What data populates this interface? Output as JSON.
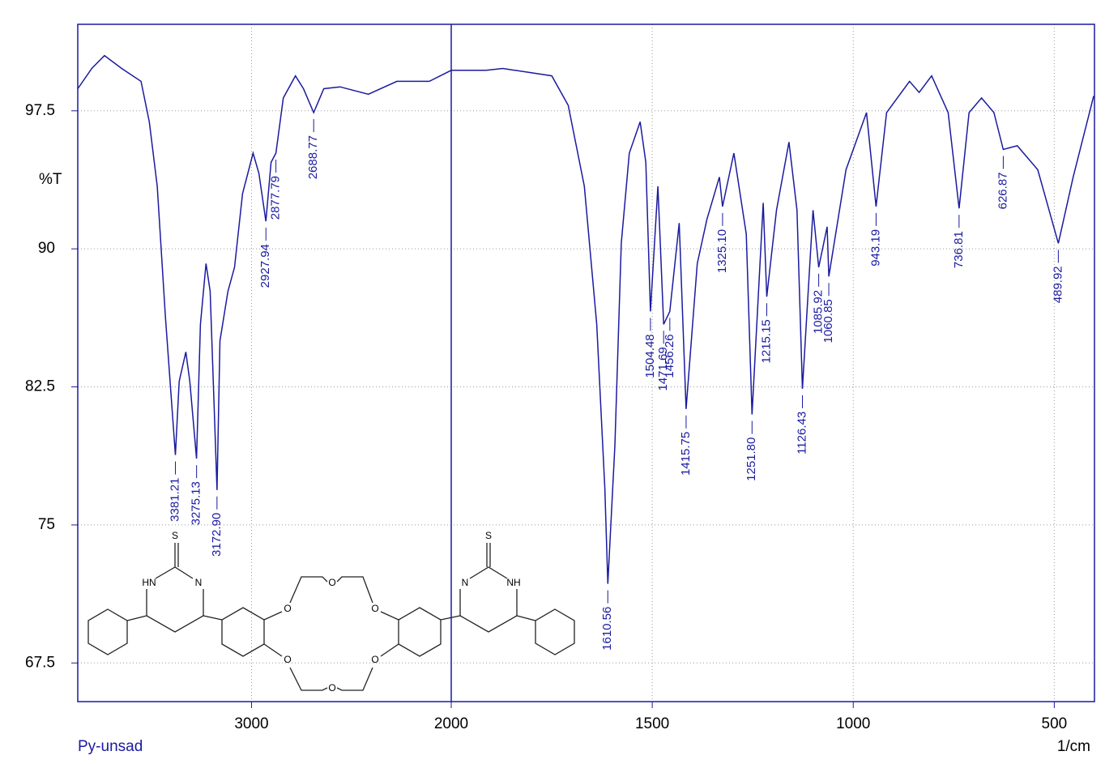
{
  "chart_data": {
    "type": "line",
    "title": "Py-unsad",
    "y_label": "%T",
    "x_label": "1/cm",
    "color": "#1a1aa0",
    "xlim": [
      3870,
      400
    ],
    "x_break": 2000,
    "ylim": [
      65.4,
      102.2
    ],
    "xticks": [
      3000,
      2000,
      1500,
      1000,
      500
    ],
    "yticks": [
      67.5,
      75,
      82.5,
      90,
      97.5
    ],
    "grid": true,
    "x": [
      3870,
      3800,
      3736,
      3650,
      3553,
      3512,
      3472,
      3431,
      3381.21,
      3362,
      3329,
      3309,
      3275.13,
      3256,
      3228,
      3207,
      3172.9,
      3158,
      3118,
      3085,
      3045,
      2992,
      2963,
      2927.94,
      2902,
      2877.79,
      2841,
      2780,
      2740,
      2688.77,
      2638,
      2557,
      2415,
      2272,
      2110,
      2000,
      1913,
      1872,
      1750,
      1709,
      1669,
      1638,
      1618,
      1610.56,
      1593,
      1577,
      1557,
      1530,
      1516,
      1504.48,
      1486,
      1471.69,
      1456.26,
      1433,
      1415.75,
      1388,
      1364,
      1333,
      1325.1,
      1297,
      1266,
      1251.8,
      1224,
      1215.15,
      1191,
      1160,
      1140,
      1126.43,
      1100,
      1085.92,
      1065,
      1060.85,
      1018,
      967,
      943.19,
      917,
      860,
      836,
      805,
      764,
      736.81,
      712,
      681,
      650,
      626.87,
      592,
      541,
      489.92,
      453,
      402
    ],
    "values": [
      98.7,
      99.8,
      100.5,
      99.8,
      99.1,
      96.9,
      93.4,
      86.3,
      78.8,
      82.8,
      84.4,
      82.8,
      78.6,
      85.9,
      89.2,
      87.7,
      76.9,
      85.0,
      87.7,
      89.0,
      93.0,
      95.2,
      94.1,
      91.5,
      94.7,
      95.2,
      98.2,
      99.4,
      98.7,
      97.4,
      98.7,
      98.8,
      98.4,
      99.1,
      99.1,
      99.7,
      99.7,
      99.8,
      99.4,
      97.8,
      93.4,
      85.9,
      77.0,
      71.8,
      79.3,
      90.3,
      95.2,
      96.9,
      94.7,
      86.6,
      93.4,
      85.9,
      86.6,
      91.4,
      81.3,
      89.2,
      91.6,
      93.9,
      92.3,
      95.2,
      90.8,
      81.0,
      92.5,
      87.4,
      92.1,
      95.8,
      92.1,
      82.4,
      92.1,
      89.0,
      91.2,
      88.5,
      94.3,
      97.4,
      92.3,
      97.4,
      99.1,
      98.5,
      99.4,
      97.4,
      92.2,
      97.4,
      98.2,
      97.4,
      95.4,
      95.6,
      94.3,
      90.3,
      93.9,
      98.3
    ],
    "peaks": [
      3381.21,
      3275.13,
      {
        "value": 3172.9,
        "label": "3172.90"
      },
      2927.94,
      2877.79,
      2688.77,
      1610.56,
      1504.48,
      1471.69,
      1456.26,
      1415.75,
      {
        "value": 1325.1,
        "label": "1325.10"
      },
      {
        "value": 1251.8,
        "label": "1251.80"
      },
      1215.15,
      1126.43,
      1085.92,
      1060.85,
      943.19,
      736.81,
      626.87,
      489.92
    ]
  },
  "structure": {
    "atoms": [
      "S",
      "HN",
      "N",
      "O",
      "O",
      "O",
      "O",
      "O",
      "O",
      "S",
      "N",
      "NH"
    ]
  }
}
